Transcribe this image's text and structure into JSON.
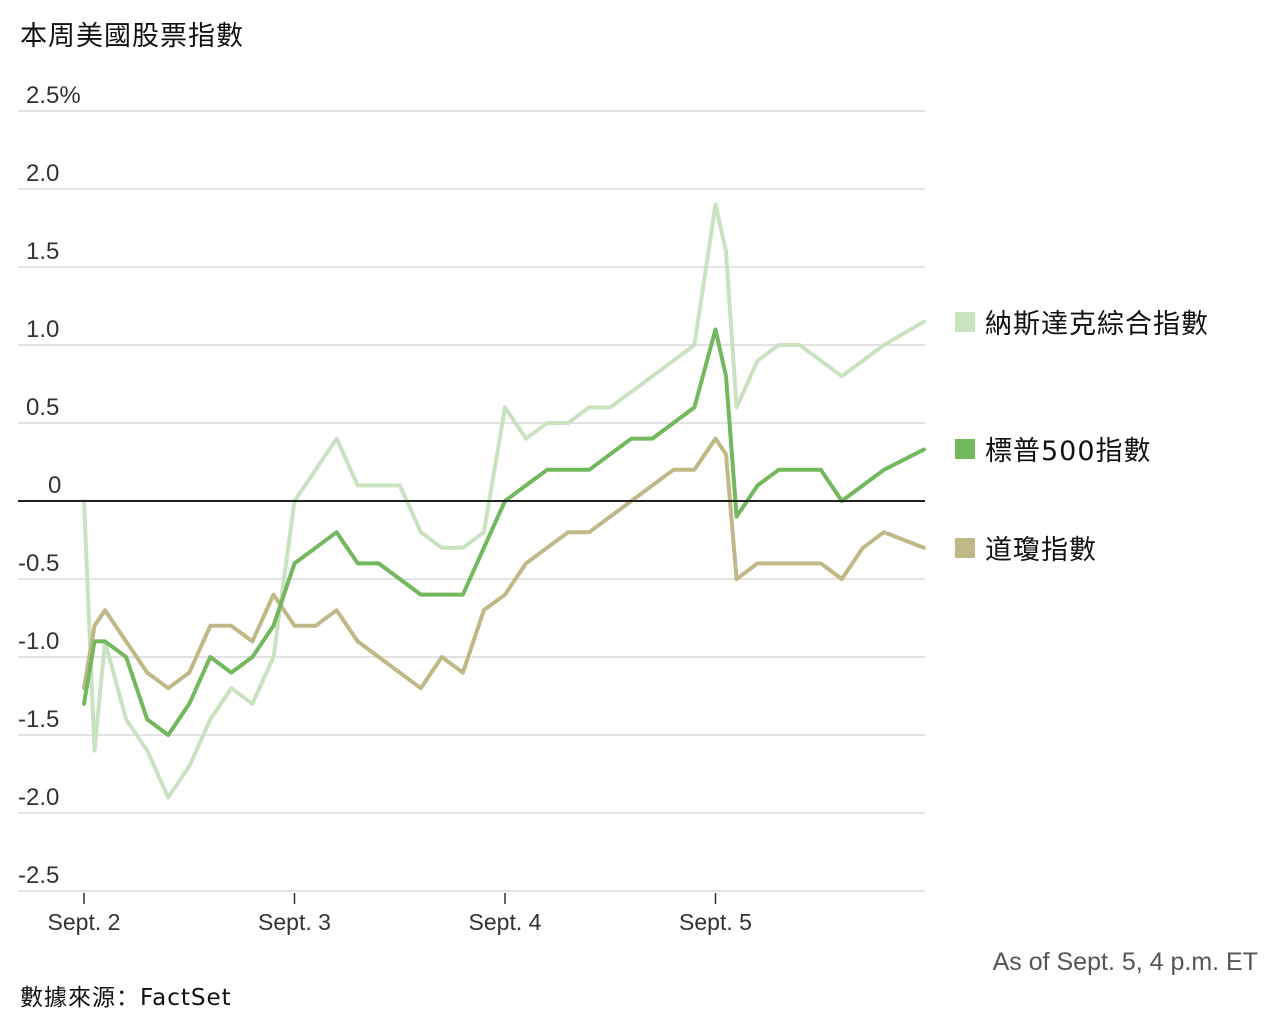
{
  "title": "本周美國股票指數",
  "note": "As of Sept. 5, 4 p.m. ET",
  "source": "數據來源：FactSet",
  "legend": [
    {
      "label": "納斯達克綜合指數",
      "color": "#c9e2bf"
    },
    {
      "label": "標普500指數",
      "color": "#72b85d"
    },
    {
      "label": "道瓊指數",
      "color": "#c0b886"
    }
  ],
  "chart_data": {
    "type": "line",
    "title": "本周美國股票指數",
    "xlabel": "",
    "ylabel": "%",
    "ylim": [
      -2.5,
      2.5
    ],
    "yticks": [
      2.5,
      2.0,
      1.5,
      1.0,
      0.5,
      0,
      -0.5,
      -1.0,
      -1.5,
      -2.0,
      -2.5
    ],
    "ytick_labels": [
      "2.5%",
      "2.0",
      "1.5",
      "1.0",
      "0.5",
      "0",
      "-0.5",
      "-1.0",
      "-1.5",
      "-2.0",
      "-2.5"
    ],
    "xticks": [
      "Sept. 2",
      "Sept. 3",
      "Sept. 4",
      "Sept. 5"
    ],
    "grid": true,
    "legend_position": "right",
    "x": [
      0,
      0.05,
      0.1,
      0.2,
      0.3,
      0.4,
      0.5,
      0.6,
      0.7,
      0.8,
      0.9,
      1.0,
      1.1,
      1.2,
      1.3,
      1.4,
      1.5,
      1.6,
      1.7,
      1.8,
      1.9,
      2.0,
      2.1,
      2.2,
      2.3,
      2.4,
      2.5,
      2.6,
      2.7,
      2.8,
      2.9,
      3.0,
      3.05,
      3.1,
      3.2,
      3.3,
      3.4,
      3.5,
      3.6,
      3.7,
      3.8,
      3.99
    ],
    "series": [
      {
        "name": "納斯達克綜合指數",
        "color": "#c9e2bf",
        "values": [
          0.0,
          -1.6,
          -0.9,
          -1.4,
          -1.6,
          -1.9,
          -1.7,
          -1.4,
          -1.2,
          -1.3,
          -1.0,
          0.0,
          0.2,
          0.4,
          0.1,
          0.1,
          0.1,
          -0.2,
          -0.3,
          -0.3,
          -0.2,
          0.6,
          0.4,
          0.5,
          0.5,
          0.6,
          0.6,
          0.7,
          0.8,
          0.9,
          1.0,
          1.9,
          1.6,
          0.6,
          0.9,
          1.0,
          1.0,
          0.9,
          0.8,
          0.9,
          1.0,
          1.15
        ]
      },
      {
        "name": "標普500指數",
        "color": "#72b85d",
        "values": [
          -1.3,
          -0.9,
          -0.9,
          -1.0,
          -1.4,
          -1.5,
          -1.3,
          -1.0,
          -1.1,
          -1.0,
          -0.8,
          -0.4,
          -0.3,
          -0.2,
          -0.4,
          -0.4,
          -0.5,
          -0.6,
          -0.6,
          -0.6,
          -0.3,
          0.0,
          0.1,
          0.2,
          0.2,
          0.2,
          0.3,
          0.4,
          0.4,
          0.5,
          0.6,
          1.1,
          0.8,
          -0.1,
          0.1,
          0.2,
          0.2,
          0.2,
          0.0,
          0.1,
          0.2,
          0.33
        ]
      },
      {
        "name": "道瓊指數",
        "color": "#c0b886",
        "values": [
          -1.2,
          -0.8,
          -0.7,
          -0.9,
          -1.1,
          -1.2,
          -1.1,
          -0.8,
          -0.8,
          -0.9,
          -0.6,
          -0.8,
          -0.8,
          -0.7,
          -0.9,
          -1.0,
          -1.1,
          -1.2,
          -1.0,
          -1.1,
          -0.7,
          -0.6,
          -0.4,
          -0.3,
          -0.2,
          -0.2,
          -0.1,
          0.0,
          0.1,
          0.2,
          0.2,
          0.4,
          0.3,
          -0.5,
          -0.4,
          -0.4,
          -0.4,
          -0.4,
          -0.5,
          -0.3,
          -0.2,
          -0.3
        ]
      }
    ]
  }
}
